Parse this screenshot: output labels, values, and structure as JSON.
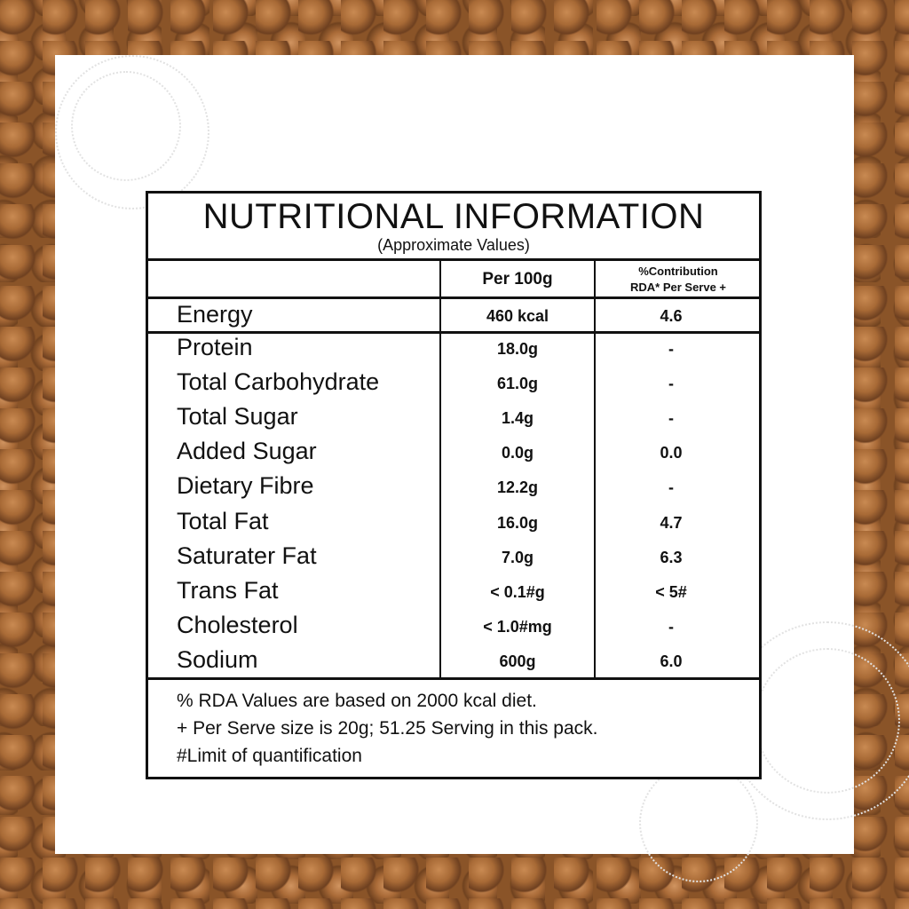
{
  "label": {
    "title": "NUTRITIONAL INFORMATION",
    "subtitle": "(Approximate Values)",
    "header": {
      "per100g": "Per 100g",
      "rda": [
        "%Contribution",
        "RDA* Per Serve +"
      ]
    },
    "rows": [
      {
        "name": "Energy",
        "per100g": "460 kcal",
        "rda": "4.6"
      },
      {
        "name": "Protein",
        "per100g": "18.0g",
        "rda": "-"
      },
      {
        "name": "Total Carbohydrate",
        "per100g": "61.0g",
        "rda": "-"
      },
      {
        "name": "Total Sugar",
        "per100g": "1.4g",
        "rda": "-"
      },
      {
        "name": "Added Sugar",
        "per100g": "0.0g",
        "rda": "0.0"
      },
      {
        "name": "Dietary Fibre",
        "per100g": "12.2g",
        "rda": "-"
      },
      {
        "name": "Total Fat",
        "per100g": "16.0g",
        "rda": "4.7"
      },
      {
        "name": "Saturater Fat",
        "per100g": "7.0g",
        "rda": "6.3"
      },
      {
        "name": "Trans Fat",
        "per100g": "< 0.1#g",
        "rda": "< 5#"
      },
      {
        "name": "Cholesterol",
        "per100g": "< 1.0#mg",
        "rda": "-"
      },
      {
        "name": "Sodium",
        "per100g": "600g",
        "rda": "6.0"
      }
    ],
    "notes": [
      "% RDA Values are based on 2000 kcal diet.",
      "+ Per Serve size is 20g; 51.25 Serving in this pack.",
      "#Limit of quantification"
    ]
  }
}
